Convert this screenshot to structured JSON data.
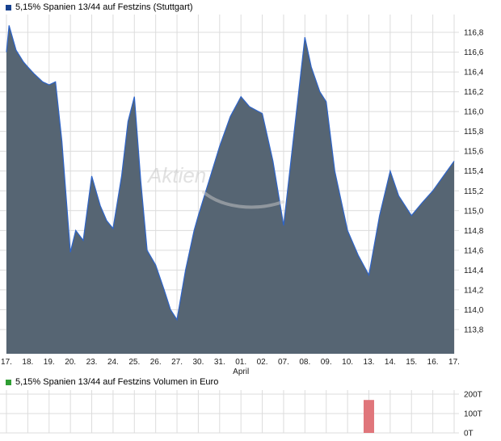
{
  "watermark": {
    "text": "Aktien"
  },
  "chart_data": [
    {
      "type": "area",
      "title": "5,15% Spanien 13/44 auf Festzins (Stuttgart)",
      "categories": [
        "17.",
        "18.",
        "19.",
        "20.",
        "23.",
        "24.",
        "25.",
        "26.",
        "27.",
        "30.",
        "31.",
        "01.",
        "02.",
        "07.",
        "08.",
        "09.",
        "10.",
        "13.",
        "14.",
        "15.",
        "16.",
        "17."
      ],
      "x_month_label": {
        "text": "April",
        "index": 11
      },
      "ylim": [
        113.8,
        116.8
      ],
      "yticks": [
        {
          "v": 116.8,
          "label": "116,8"
        },
        {
          "v": 116.6,
          "label": "116,6"
        },
        {
          "v": 116.4,
          "label": "116,4"
        },
        {
          "v": 116.2,
          "label": "116,2"
        },
        {
          "v": 116.0,
          "label": "116,0"
        },
        {
          "v": 115.8,
          "label": "115,8"
        },
        {
          "v": 115.6,
          "label": "115,6"
        },
        {
          "v": 115.4,
          "label": "115,4"
        },
        {
          "v": 115.2,
          "label": "115,2"
        },
        {
          "v": 115.0,
          "label": "115,0"
        },
        {
          "v": 114.8,
          "label": "114,8"
        },
        {
          "v": 114.6,
          "label": "114,6"
        },
        {
          "v": 114.4,
          "label": "114,4"
        },
        {
          "v": 114.2,
          "label": "114,2"
        },
        {
          "v": 114.0,
          "label": "114,0"
        },
        {
          "v": 113.8,
          "label": "113,8"
        }
      ],
      "points": [
        [
          0,
          116.6
        ],
        [
          0.12,
          116.87
        ],
        [
          0.45,
          116.62
        ],
        [
          0.8,
          116.5
        ],
        [
          1,
          116.45
        ],
        [
          1.3,
          116.38
        ],
        [
          1.7,
          116.3
        ],
        [
          2,
          116.27
        ],
        [
          2.3,
          116.3
        ],
        [
          2.6,
          115.7
        ],
        [
          3,
          114.58
        ],
        [
          3.25,
          114.8
        ],
        [
          3.6,
          114.7
        ],
        [
          4,
          115.35
        ],
        [
          4.4,
          115.05
        ],
        [
          4.7,
          114.9
        ],
        [
          5,
          114.82
        ],
        [
          5.4,
          115.35
        ],
        [
          5.7,
          115.9
        ],
        [
          6,
          116.15
        ],
        [
          6.3,
          115.3
        ],
        [
          6.6,
          114.6
        ],
        [
          7,
          114.45
        ],
        [
          7.4,
          114.2
        ],
        [
          7.7,
          114.0
        ],
        [
          8,
          113.9
        ],
        [
          8.4,
          114.4
        ],
        [
          8.8,
          114.8
        ],
        [
          9,
          114.95
        ],
        [
          9.5,
          115.3
        ],
        [
          10,
          115.65
        ],
        [
          10.5,
          115.95
        ],
        [
          11,
          116.15
        ],
        [
          11.4,
          116.05
        ],
        [
          12,
          115.98
        ],
        [
          12.5,
          115.5
        ],
        [
          13,
          114.85
        ],
        [
          13.5,
          115.8
        ],
        [
          14,
          116.75
        ],
        [
          14.3,
          116.45
        ],
        [
          14.7,
          116.2
        ],
        [
          15,
          116.1
        ],
        [
          15.4,
          115.4
        ],
        [
          16,
          114.8
        ],
        [
          16.5,
          114.55
        ],
        [
          17,
          114.35
        ],
        [
          17.5,
          114.95
        ],
        [
          18,
          115.4
        ],
        [
          18.4,
          115.15
        ],
        [
          19,
          114.95
        ],
        [
          19.5,
          115.08
        ],
        [
          20,
          115.2
        ],
        [
          20.5,
          115.35
        ],
        [
          21,
          115.5
        ]
      ],
      "grid": true,
      "legend_position": "top-left",
      "colors": {
        "line": "#2e64c8",
        "fill": "#566573",
        "legend_marker": "#16418f",
        "grid": "#dcdcdc"
      }
    },
    {
      "type": "bar",
      "title": "5,15% Spanien 13/44 auf Festzins Volumen in Euro",
      "categories": [
        "17.",
        "18.",
        "19.",
        "20.",
        "23.",
        "24.",
        "25.",
        "26.",
        "27.",
        "30.",
        "31.",
        "01.",
        "02.",
        "07.",
        "08.",
        "09.",
        "10.",
        "13.",
        "14.",
        "15.",
        "16.",
        "17."
      ],
      "ylim": [
        0,
        200000
      ],
      "yticks": [
        {
          "v": 200000,
          "label": "200T"
        },
        {
          "v": 100000,
          "label": "100T"
        },
        {
          "v": 0,
          "label": "0T"
        }
      ],
      "bars": [
        {
          "category": "13.",
          "index": 17,
          "value": 170000
        }
      ],
      "grid": true,
      "legend_position": "top-left",
      "colors": {
        "bar": "#e0767b",
        "legend_marker": "#2f9e33",
        "grid": "#dcdcdc"
      }
    }
  ]
}
